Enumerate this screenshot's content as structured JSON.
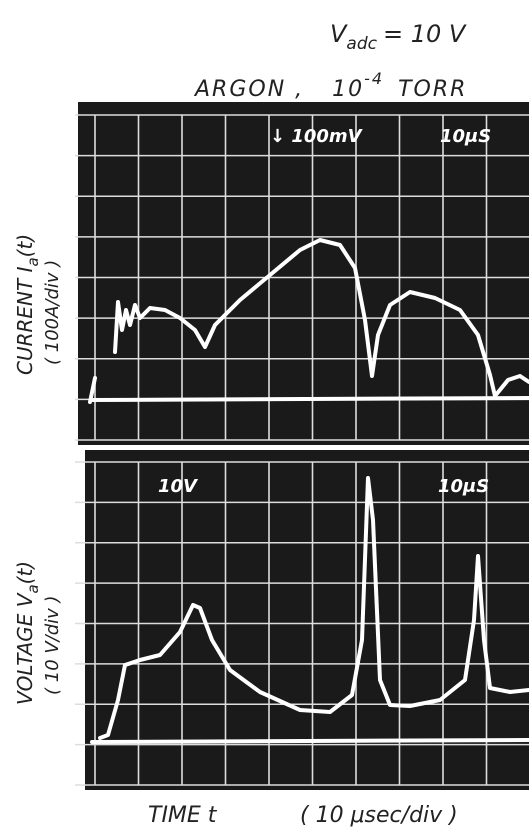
{
  "header": {
    "bias": {
      "symbol": "V",
      "subscript": "adc",
      "rest": "= 10 V"
    },
    "gas": {
      "name": "ARGON ,",
      "pressure_base": "10",
      "pressure_exponent": "-4",
      "pressure_unit": "TORR"
    }
  },
  "panels": [
    {
      "scale_marker": "↓ 100mV",
      "timebase": "10μS",
      "label": {
        "symbol": "CURRENT  I",
        "subscript": "a",
        "rest": "(t)"
      },
      "units": "( 100A/div )"
    },
    {
      "scale_marker": "10V",
      "timebase": "10μS",
      "label": {
        "symbol": "VOLTAGE  V",
        "subscript": "a",
        "rest": "(t)"
      },
      "units": "( 10 V/div )"
    }
  ],
  "x_axis": {
    "label": "TIME  t",
    "units": "( 10 μsec/div )"
  }
}
